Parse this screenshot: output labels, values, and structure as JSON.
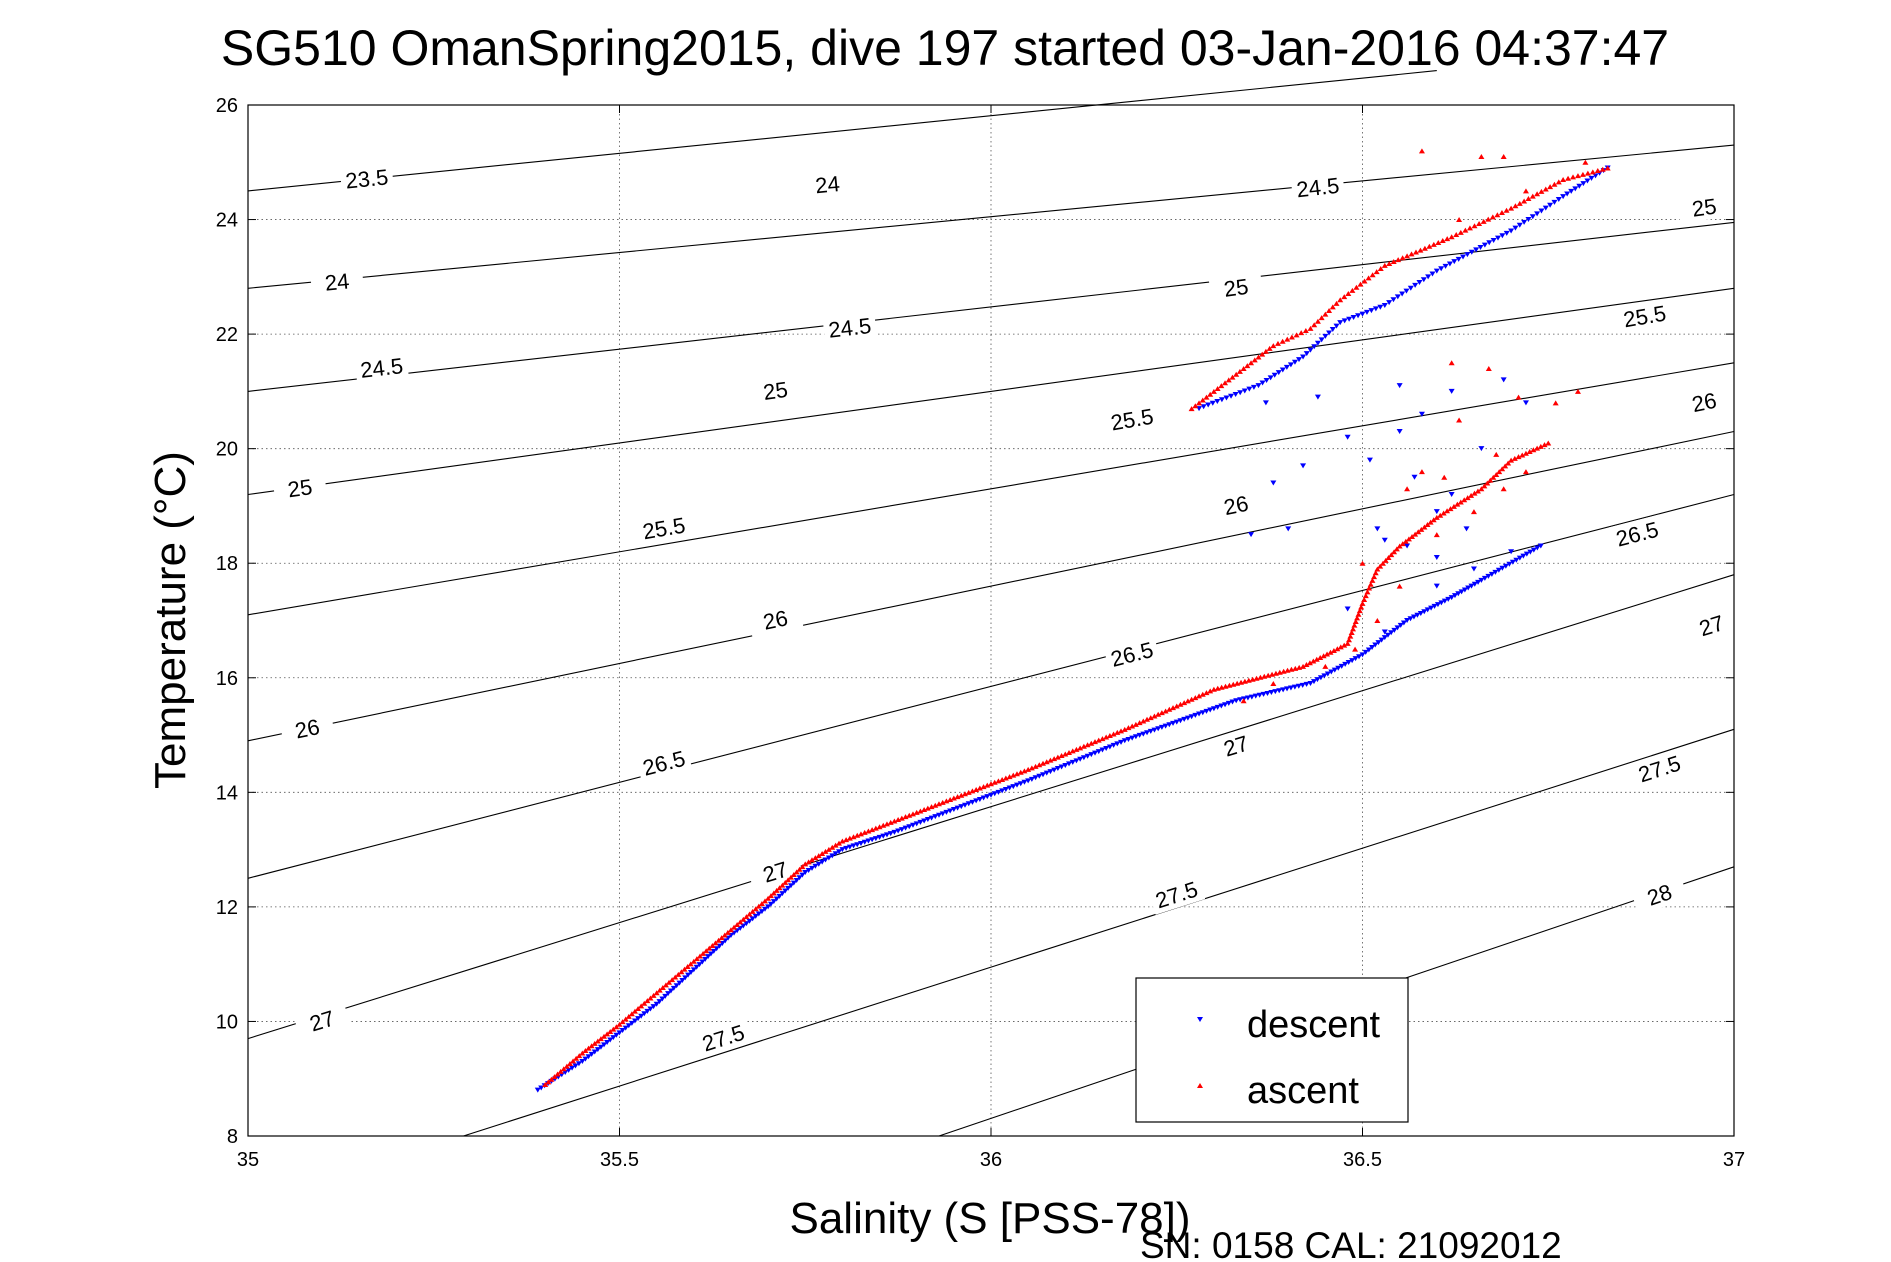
{
  "chart_data": {
    "type": "scatter",
    "title": "SG510 OmanSpring2015, dive 197 started 03-Jan-2016 04:37:47",
    "xlabel": "Salinity (S [PSS-78])",
    "ylabel": "Temperature (°C)",
    "xlim": [
      35,
      37
    ],
    "ylim": [
      8,
      26
    ],
    "xticks": [
      35,
      35.5,
      36,
      36.5,
      37
    ],
    "xtick_labels": [
      "35",
      "35.5",
      "36",
      "36.5",
      "37"
    ],
    "yticks": [
      8,
      10,
      12,
      14,
      16,
      18,
      20,
      22,
      24,
      26
    ],
    "ytick_labels": [
      "8",
      "10",
      "12",
      "14",
      "16",
      "18",
      "20",
      "22",
      "24",
      "26"
    ],
    "grid": true,
    "legend_position": "bottom-right",
    "footer": "SN: 0158  CAL: 21092012",
    "density_contours": [
      {
        "level": 23.5,
        "points": [
          [
            35.0,
            24.5
          ],
          [
            36.6,
            26.6
          ]
        ],
        "labels": [
          {
            "text": "23.5",
            "x": 35.16,
            "y": 24.7
          }
        ]
      },
      {
        "level": 24.0,
        "points": [
          [
            35.0,
            22.8
          ],
          [
            37.0,
            25.3
          ]
        ],
        "labels": [
          {
            "text": "24",
            "x": 35.12,
            "y": 22.9
          },
          {
            "text": "24",
            "x": 35.78,
            "y": 24.6
          }
        ]
      },
      {
        "level": 24.5,
        "points": [
          [
            35.0,
            21.0
          ],
          [
            37.0,
            23.95
          ]
        ],
        "labels": [
          {
            "text": "24.5",
            "x": 35.18,
            "y": 21.4
          },
          {
            "text": "24.5",
            "x": 35.81,
            "y": 22.1
          },
          {
            "text": "24.5",
            "x": 36.44,
            "y": 24.55
          }
        ]
      },
      {
        "level": 25.0,
        "points": [
          [
            35.0,
            19.2
          ],
          [
            37.0,
            22.8
          ]
        ],
        "labels": [
          {
            "text": "25",
            "x": 35.07,
            "y": 19.3
          },
          {
            "text": "25",
            "x": 35.71,
            "y": 21.0
          },
          {
            "text": "25",
            "x": 36.33,
            "y": 22.8
          },
          {
            "text": "25",
            "x": 36.96,
            "y": 24.2
          }
        ]
      },
      {
        "level": 25.5,
        "points": [
          [
            35.0,
            17.1
          ],
          [
            37.0,
            21.5
          ]
        ],
        "labels": [
          {
            "text": "25.5",
            "x": 35.56,
            "y": 18.6
          },
          {
            "text": "25.5",
            "x": 36.19,
            "y": 20.5
          },
          {
            "text": "25.5",
            "x": 36.88,
            "y": 22.3
          }
        ]
      },
      {
        "level": 26.0,
        "points": [
          [
            35.0,
            14.9
          ],
          [
            37.0,
            20.3
          ]
        ],
        "labels": [
          {
            "text": "26",
            "x": 35.08,
            "y": 15.1
          },
          {
            "text": "26",
            "x": 35.71,
            "y": 17.0
          },
          {
            "text": "26",
            "x": 36.33,
            "y": 19.0
          },
          {
            "text": "26",
            "x": 36.96,
            "y": 20.8
          }
        ]
      },
      {
        "level": 26.5,
        "points": [
          [
            35.0,
            12.5
          ],
          [
            37.0,
            19.2
          ]
        ],
        "labels": [
          {
            "text": "26.5",
            "x": 35.56,
            "y": 14.5
          },
          {
            "text": "26.5",
            "x": 36.19,
            "y": 16.4
          },
          {
            "text": "26.5",
            "x": 36.87,
            "y": 18.5
          }
        ]
      },
      {
        "level": 27.0,
        "points": [
          [
            35.0,
            9.7
          ],
          [
            37.0,
            17.8
          ]
        ],
        "labels": [
          {
            "text": "27",
            "x": 35.1,
            "y": 10.0
          },
          {
            "text": "27",
            "x": 35.71,
            "y": 12.6
          },
          {
            "text": "27",
            "x": 36.33,
            "y": 14.8
          },
          {
            "text": "27",
            "x": 36.97,
            "y": 16.9
          }
        ]
      },
      {
        "level": 27.5,
        "points": [
          [
            35.29,
            8.0
          ],
          [
            37.0,
            15.1
          ]
        ],
        "labels": [
          {
            "text": "27.5",
            "x": 35.64,
            "y": 9.7
          },
          {
            "text": "27.5",
            "x": 36.25,
            "y": 12.2
          },
          {
            "text": "27.5",
            "x": 36.9,
            "y": 14.4
          }
        ]
      },
      {
        "level": 28.0,
        "points": [
          [
            35.93,
            8.0
          ],
          [
            37.0,
            12.7
          ]
        ],
        "labels": [
          {
            "text": "28",
            "x": 36.9,
            "y": 12.2
          }
        ]
      }
    ],
    "series": [
      {
        "name": "descent",
        "color": "#0000ff",
        "marker": "triangle-down",
        "path": [
          [
            35.39,
            8.8
          ],
          [
            35.45,
            9.3
          ],
          [
            35.5,
            9.8
          ],
          [
            35.55,
            10.3
          ],
          [
            35.6,
            10.9
          ],
          [
            35.65,
            11.5
          ],
          [
            35.7,
            12.0
          ],
          [
            35.75,
            12.6
          ],
          [
            35.8,
            13.0
          ],
          [
            35.87,
            13.3
          ],
          [
            35.93,
            13.6
          ],
          [
            36.05,
            14.2
          ],
          [
            36.18,
            14.9
          ],
          [
            36.33,
            15.6
          ],
          [
            36.43,
            15.9
          ],
          [
            36.5,
            16.4
          ],
          [
            36.56,
            17.0
          ],
          [
            36.62,
            17.4
          ],
          [
            36.66,
            17.7
          ],
          [
            36.74,
            18.3
          ]
        ],
        "path2": [
          [
            36.28,
            20.7
          ],
          [
            36.36,
            21.1
          ],
          [
            36.42,
            21.6
          ],
          [
            36.47,
            22.2
          ],
          [
            36.53,
            22.5
          ],
          [
            36.6,
            23.1
          ],
          [
            36.7,
            23.8
          ],
          [
            36.77,
            24.4
          ],
          [
            36.83,
            24.9
          ]
        ],
        "scatter": [
          [
            36.35,
            18.5
          ],
          [
            36.4,
            18.6
          ],
          [
            36.38,
            19.4
          ],
          [
            36.42,
            19.7
          ],
          [
            36.37,
            20.8
          ],
          [
            36.44,
            20.9
          ],
          [
            36.48,
            20.2
          ],
          [
            36.51,
            19.8
          ],
          [
            36.55,
            20.3
          ],
          [
            36.58,
            20.6
          ],
          [
            36.62,
            21.0
          ],
          [
            36.57,
            19.5
          ],
          [
            36.52,
            18.6
          ],
          [
            36.6,
            18.9
          ],
          [
            36.66,
            20.0
          ],
          [
            36.69,
            21.2
          ],
          [
            36.72,
            20.8
          ],
          [
            36.55,
            21.1
          ],
          [
            36.62,
            19.2
          ],
          [
            36.64,
            18.6
          ],
          [
            36.56,
            18.3
          ],
          [
            36.6,
            18.1
          ],
          [
            36.53,
            18.4
          ],
          [
            36.48,
            17.2
          ],
          [
            36.53,
            16.8
          ],
          [
            36.7,
            18.2
          ],
          [
            36.65,
            17.9
          ],
          [
            36.6,
            17.6
          ]
        ]
      },
      {
        "name": "ascent",
        "color": "#ff0000",
        "marker": "triangle-up",
        "path": [
          [
            35.4,
            8.9
          ],
          [
            35.45,
            9.45
          ],
          [
            35.5,
            9.95
          ],
          [
            35.55,
            10.5
          ],
          [
            35.6,
            11.05
          ],
          [
            35.65,
            11.6
          ],
          [
            35.7,
            12.15
          ],
          [
            35.75,
            12.75
          ],
          [
            35.8,
            13.15
          ],
          [
            35.87,
            13.5
          ],
          [
            35.93,
            13.8
          ],
          [
            36.05,
            14.4
          ],
          [
            36.18,
            15.1
          ],
          [
            36.3,
            15.8
          ],
          [
            36.42,
            16.2
          ],
          [
            36.48,
            16.6
          ],
          [
            36.5,
            17.3
          ],
          [
            36.52,
            17.9
          ],
          [
            36.55,
            18.3
          ],
          [
            36.6,
            18.8
          ],
          [
            36.66,
            19.3
          ],
          [
            36.7,
            19.8
          ],
          [
            36.75,
            20.1
          ]
        ],
        "path2": [
          [
            36.27,
            20.7
          ],
          [
            36.3,
            21.0
          ],
          [
            36.34,
            21.4
          ],
          [
            36.38,
            21.8
          ],
          [
            36.43,
            22.1
          ],
          [
            36.47,
            22.6
          ],
          [
            36.53,
            23.2
          ],
          [
            36.62,
            23.7
          ],
          [
            36.7,
            24.2
          ],
          [
            36.77,
            24.7
          ],
          [
            36.83,
            24.9
          ]
        ],
        "scatter": [
          [
            36.58,
            25.2
          ],
          [
            36.66,
            25.1
          ],
          [
            36.69,
            25.1
          ],
          [
            36.72,
            24.5
          ],
          [
            36.8,
            25.0
          ],
          [
            36.63,
            24.0
          ],
          [
            36.62,
            21.5
          ],
          [
            36.67,
            21.4
          ],
          [
            36.71,
            20.9
          ],
          [
            36.79,
            21.0
          ],
          [
            36.76,
            20.8
          ],
          [
            36.63,
            20.5
          ],
          [
            36.68,
            19.9
          ],
          [
            36.72,
            19.6
          ],
          [
            36.69,
            19.3
          ],
          [
            36.65,
            18.9
          ],
          [
            36.6,
            18.5
          ],
          [
            36.55,
            17.6
          ],
          [
            36.52,
            17.0
          ],
          [
            36.49,
            16.5
          ],
          [
            36.45,
            16.2
          ],
          [
            36.38,
            15.9
          ],
          [
            36.34,
            15.6
          ],
          [
            36.5,
            18.0
          ],
          [
            36.56,
            19.3
          ],
          [
            36.58,
            19.6
          ],
          [
            36.61,
            19.5
          ]
        ]
      }
    ]
  }
}
